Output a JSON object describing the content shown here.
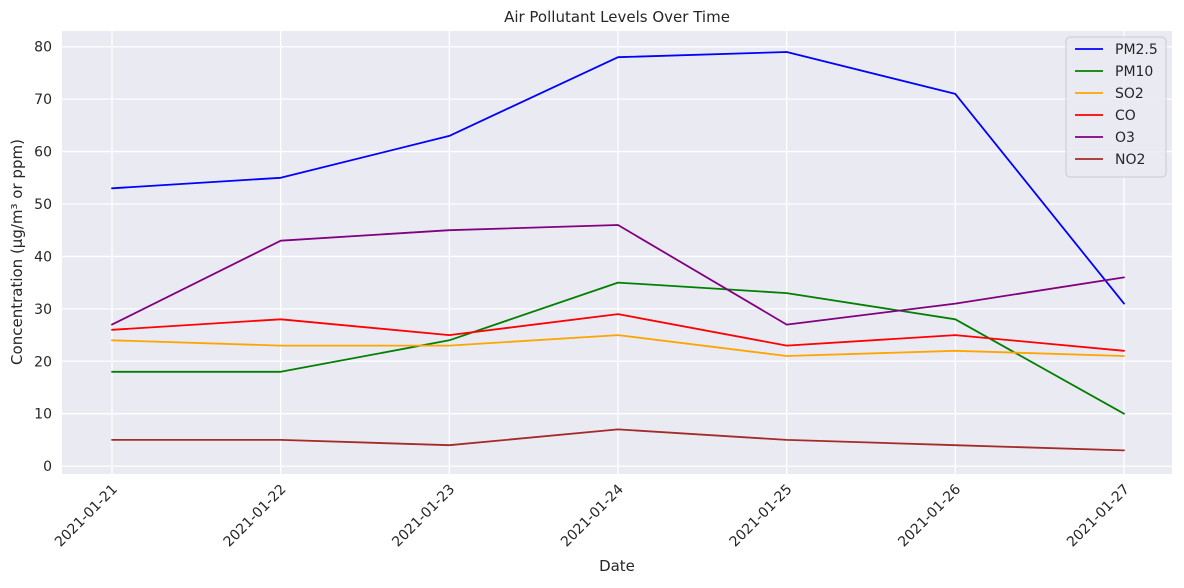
{
  "chart_data": {
    "type": "line",
    "title": "Air Pollutant Levels Over Time",
    "xlabel": "Date",
    "ylabel": "Concentration (µg/m³ or ppm)",
    "x": [
      "2021-01-21",
      "2021-01-22",
      "2021-01-23",
      "2021-01-24",
      "2021-01-25",
      "2021-01-26",
      "2021-01-27"
    ],
    "ylim": [
      -1.5,
      83
    ],
    "yticks": [
      0,
      10,
      20,
      30,
      40,
      50,
      60,
      70,
      80
    ],
    "grid": true,
    "legend_position": "top-right",
    "series": [
      {
        "name": "PM2.5",
        "color": "#0000ff",
        "values": [
          53,
          55,
          63,
          78,
          79,
          71,
          31
        ]
      },
      {
        "name": "PM10",
        "color": "#008000",
        "values": [
          18,
          18,
          24,
          35,
          33,
          28,
          10
        ]
      },
      {
        "name": "SO2",
        "color": "#ffa500",
        "values": [
          24,
          23,
          23,
          25,
          21,
          22,
          21
        ]
      },
      {
        "name": "CO",
        "color": "#ff0000",
        "values": [
          26,
          28,
          25,
          29,
          23,
          25,
          22
        ]
      },
      {
        "name": "O3",
        "color": "#800080",
        "values": [
          27,
          43,
          45,
          46,
          27,
          31,
          36
        ]
      },
      {
        "name": "NO2",
        "color": "#a52a2a",
        "values": [
          5,
          5,
          4,
          7,
          5,
          4,
          3
        ]
      }
    ]
  }
}
